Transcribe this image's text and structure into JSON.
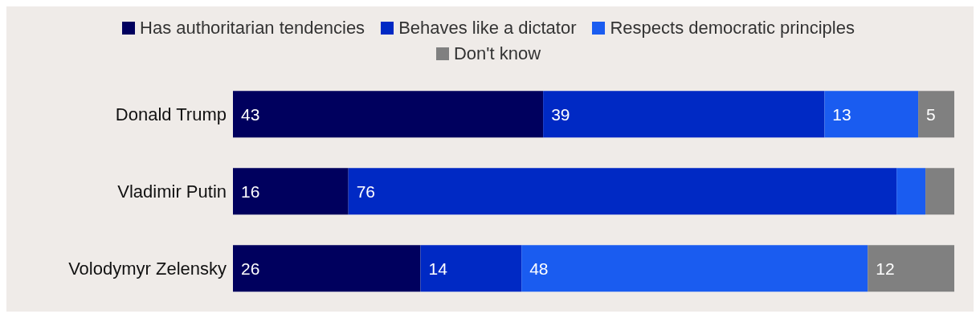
{
  "chart_data": {
    "type": "bar",
    "orientation": "horizontal",
    "stacked": true,
    "categories": [
      "Donald Trump",
      "Vladimir Putin",
      "Volodymyr Zelensky"
    ],
    "series": [
      {
        "name": "Has authoritarian tendencies",
        "color": "#00005e",
        "values": [
          43,
          16,
          26
        ],
        "value_labels": [
          "43",
          "16",
          "26"
        ]
      },
      {
        "name": "Behaves like a dictator",
        "color": "#0029c4",
        "values": [
          39,
          76,
          14
        ],
        "value_labels": [
          "39",
          "76",
          "14"
        ]
      },
      {
        "name": "Respects democratic principles",
        "color": "#1a5cf0",
        "values": [
          13,
          4,
          48
        ],
        "value_labels": [
          "13",
          null,
          "48"
        ]
      },
      {
        "name": "Don't know",
        "color": "#808080",
        "values": [
          5,
          4,
          12
        ],
        "value_labels": [
          "5",
          null,
          "12"
        ]
      }
    ],
    "xlim": [
      0,
      100
    ],
    "tick_labels": "y",
    "legend": "top",
    "grid": false
  }
}
